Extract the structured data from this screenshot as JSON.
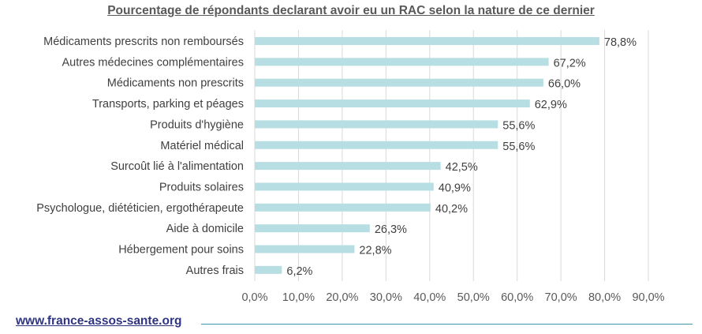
{
  "chart_data": {
    "type": "bar",
    "orientation": "horizontal",
    "title": "Pourcentage de répondants declarant avoir eu un RAC selon la nature de ce dernier",
    "categories": [
      "Médicaments prescrits non remboursés",
      "Autres médecines complémentaires",
      "Médicaments non prescrits",
      "Transports, parking et péages",
      "Produits d'hygiène",
      "Matériel médical",
      "Surcoût lié à l'alimentation",
      "Produits solaires",
      "Psychologue, diététicien, ergothérapeute",
      "Aide à domicile",
      "Hébergement pour soins",
      "Autres frais"
    ],
    "values": [
      78.8,
      67.2,
      66.0,
      62.9,
      55.6,
      55.6,
      42.5,
      40.9,
      40.2,
      26.3,
      22.8,
      6.2
    ],
    "value_labels": [
      "78,8%",
      "67,2%",
      "66,0%",
      "62,9%",
      "55,6%",
      "55,6%",
      "42,5%",
      "40,9%",
      "40,2%",
      "26,3%",
      "22,8%",
      "6,2%"
    ],
    "xticks": [
      "0,0%",
      "10,0%",
      "20,0%",
      "30,0%",
      "40,0%",
      "50,0%",
      "60,0%",
      "70,0%",
      "80,0%",
      "90,0%"
    ],
    "xlim": [
      0,
      90
    ],
    "grid": true,
    "xlabel": "",
    "ylabel": "",
    "bar_color": "#b7dfe3"
  },
  "footer": {
    "link": "www.france-assos-sante.org"
  }
}
